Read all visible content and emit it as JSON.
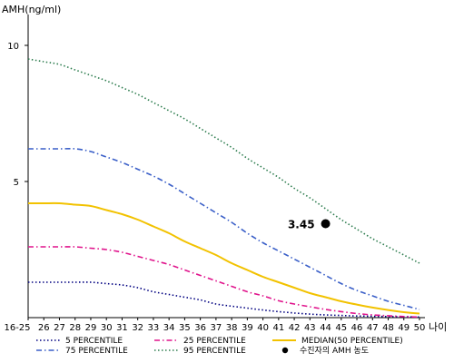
{
  "chart_data": {
    "type": "line",
    "title": "",
    "ylabel": "AMH(ng/ml)",
    "xlabel": "나이",
    "ylim": [
      0,
      11
    ],
    "y_ticks": [
      5,
      10
    ],
    "grid": false,
    "legend_position": "bottom",
    "categories": [
      "16-25",
      "26",
      "27",
      "28",
      "29",
      "30",
      "31",
      "32",
      "33",
      "34",
      "35",
      "36",
      "37",
      "38",
      "39",
      "40",
      "41",
      "42",
      "43",
      "44",
      "45",
      "46",
      "47",
      "48",
      "49",
      "50"
    ],
    "series": [
      {
        "name": "5 PERCENTILE",
        "color": "#000080",
        "dash": "dotted",
        "values": [
          1.3,
          1.3,
          1.3,
          1.3,
          1.3,
          1.25,
          1.2,
          1.1,
          0.95,
          0.85,
          0.75,
          0.65,
          0.5,
          0.42,
          0.35,
          0.28,
          0.22,
          0.17,
          0.13,
          0.1,
          0.08,
          0.06,
          0.05,
          0.04,
          0.03,
          0.02
        ]
      },
      {
        "name": "25 PERCENTILE",
        "color": "#e0148c",
        "dash": "dashdot",
        "values": [
          2.6,
          2.6,
          2.6,
          2.6,
          2.55,
          2.5,
          2.4,
          2.25,
          2.1,
          1.95,
          1.75,
          1.55,
          1.35,
          1.15,
          0.95,
          0.8,
          0.62,
          0.5,
          0.4,
          0.3,
          0.22,
          0.15,
          0.1,
          0.07,
          0.04,
          0.02
        ]
      },
      {
        "name": "MEDIAN(50 PERCENTILE)",
        "color": "#f2c200",
        "dash": "solid",
        "values": [
          4.2,
          4.2,
          4.2,
          4.15,
          4.1,
          3.95,
          3.8,
          3.6,
          3.35,
          3.1,
          2.8,
          2.55,
          2.3,
          2.0,
          1.75,
          1.5,
          1.3,
          1.1,
          0.9,
          0.75,
          0.6,
          0.48,
          0.37,
          0.28,
          0.2,
          0.15
        ]
      },
      {
        "name": "75 PERCENTILE",
        "color": "#3a5fc8",
        "dash": "dashdot",
        "values": [
          6.2,
          6.2,
          6.2,
          6.2,
          6.1,
          5.9,
          5.7,
          5.45,
          5.2,
          4.9,
          4.55,
          4.2,
          3.85,
          3.5,
          3.1,
          2.75,
          2.45,
          2.15,
          1.85,
          1.55,
          1.25,
          1.0,
          0.8,
          0.6,
          0.45,
          0.3
        ]
      },
      {
        "name": "95 PERCENTILE",
        "color": "#2e7d4f",
        "dash": "dotted",
        "values": [
          9.5,
          9.4,
          9.3,
          9.1,
          8.9,
          8.7,
          8.45,
          8.2,
          7.9,
          7.6,
          7.3,
          6.95,
          6.6,
          6.25,
          5.85,
          5.5,
          5.15,
          4.75,
          4.4,
          4.0,
          3.6,
          3.25,
          2.9,
          2.6,
          2.3,
          2.0
        ]
      }
    ],
    "highlight_point": {
      "label": "수진자의 AMH 농도",
      "x": "44",
      "y": 3.45,
      "value_label": "3.45",
      "color": "#000000"
    }
  }
}
